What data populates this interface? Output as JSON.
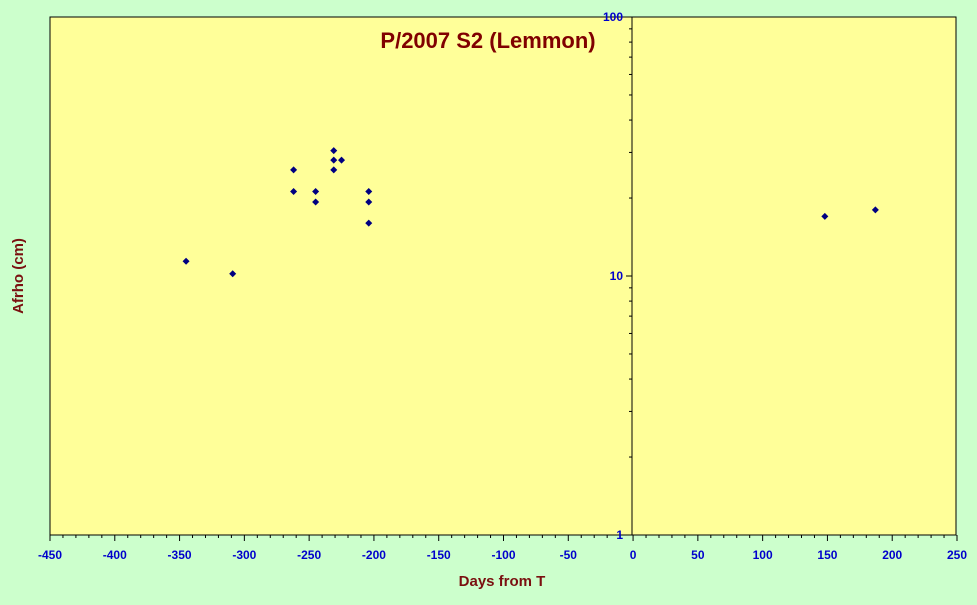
{
  "chart_data": {
    "type": "scatter",
    "title": "P/2007 S2 (Lemmon)",
    "xlabel": "Days from T",
    "ylabel": "Afrho (cm)",
    "xlim": [
      -450,
      250
    ],
    "ylim": [
      1,
      100
    ],
    "yscale": "log",
    "grid": false,
    "x_ticks": [
      -450,
      -400,
      -350,
      -300,
      -250,
      -200,
      -150,
      -100,
      -50,
      0,
      50,
      100,
      150,
      200,
      250
    ],
    "y_ticks": [
      1,
      10,
      100
    ],
    "y_tick_labels": [
      "1",
      "10",
      "100"
    ],
    "marker_color": "#000080",
    "plot_background": "#ffff99",
    "background": "#ccffcc",
    "series": [
      {
        "points": [
          {
            "x": -345,
            "y": 11.4
          },
          {
            "x": -309,
            "y": 10.2
          },
          {
            "x": -262,
            "y": 25.7
          },
          {
            "x": -262,
            "y": 21.2
          },
          {
            "x": -245,
            "y": 21.2
          },
          {
            "x": -245,
            "y": 19.3
          },
          {
            "x": -231,
            "y": 30.5
          },
          {
            "x": -231,
            "y": 28.0
          },
          {
            "x": -231,
            "y": 25.7
          },
          {
            "x": -225,
            "y": 28.0
          },
          {
            "x": -204,
            "y": 21.2
          },
          {
            "x": -204,
            "y": 19.3
          },
          {
            "x": -204,
            "y": 16.0
          },
          {
            "x": 148,
            "y": 17.0
          },
          {
            "x": 187,
            "y": 18.0
          }
        ]
      }
    ]
  }
}
